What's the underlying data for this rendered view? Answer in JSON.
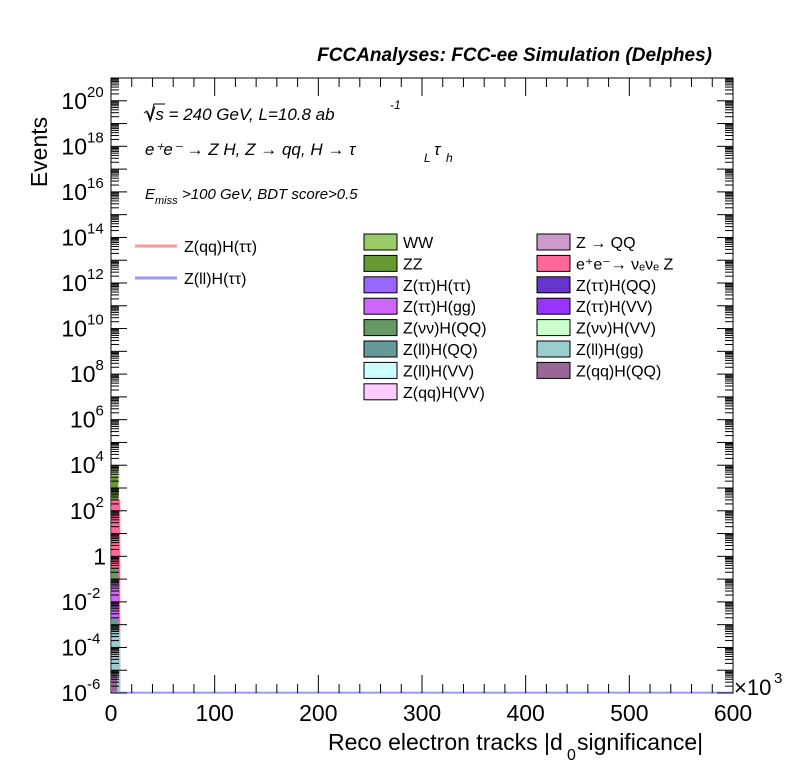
{
  "header": {
    "title": "FCCAnalyses: FCC-ee Simulation (Delphes)",
    "energy_line": "√s = 240 GeV, L=10.8 ab",
    "energy_exp": "-1",
    "process": "e⁺e⁻ → Z H, Z → qq, H → τ",
    "process_sub1": "L",
    "process_tail": "τ",
    "process_sub2": "h",
    "cuts_prefix": "E",
    "cuts_sub": "miss",
    "cuts_tail": ">100 GeV, BDT score>0.5"
  },
  "axes": {
    "xlabel": "Reco electron tracks |d",
    "xlabel_sub": "0",
    "xlabel_tail": " significance|",
    "ylabel": "Events",
    "x_multiplier": "×10",
    "x_multiplier_exp": "3"
  },
  "chart_data": {
    "type": "bar",
    "xlim": [
      0,
      600
    ],
    "x_unit_scale": 1000,
    "ylim": [
      1e-06,
      1e+21
    ],
    "ylog": true,
    "grid": false,
    "xticks": [
      "0",
      "100",
      "200",
      "300",
      "400",
      "500",
      "600"
    ],
    "yticks": [
      {
        "base": "10",
        "exp": "20",
        "value": 1e+20
      },
      {
        "base": "10",
        "exp": "18",
        "value": 1e+18
      },
      {
        "base": "10",
        "exp": "16",
        "value": 1e+16
      },
      {
        "base": "10",
        "exp": "14",
        "value": 100000000000000.0
      },
      {
        "base": "10",
        "exp": "12",
        "value": 1000000000000.0
      },
      {
        "base": "10",
        "exp": "10",
        "value": 10000000000.0
      },
      {
        "base": "10",
        "exp": "8",
        "value": 100000000.0
      },
      {
        "base": "10",
        "exp": "6",
        "value": 1000000.0
      },
      {
        "base": "10",
        "exp": "4",
        "value": 10000.0
      },
      {
        "base": "10",
        "exp": "2",
        "value": 100.0
      },
      {
        "base": "1",
        "exp": "",
        "value": 1
      },
      {
        "base": "10",
        "exp": "-2",
        "value": 0.01
      },
      {
        "base": "10",
        "exp": "-4",
        "value": 0.0001
      },
      {
        "base": "10",
        "exp": "-6",
        "value": 1e-06
      }
    ],
    "stack": [
      {
        "name": "WW",
        "color": "#99cc66",
        "x0": 0,
        "x1": 6,
        "top": 10000
      },
      {
        "name": "ZZ",
        "color": "#669933",
        "x0": 0,
        "x1": 6,
        "top": 3000
      },
      {
        "name": "e⁺e⁻→ νₑνₑ Z",
        "color": "#ff6699",
        "x0": 0,
        "x1": 8,
        "top": 300
      },
      {
        "name": "Z(νν)H(QQ)",
        "color": "#669966",
        "x0": 0,
        "x1": 6,
        "top": 0.3
      },
      {
        "name": "Z(ττ)H(gg)",
        "color": "#cc66ff",
        "x0": 0,
        "x1": 6,
        "top": 0.08
      },
      {
        "name": "Z(ll)H(QQ)",
        "color": "#669999",
        "x0": 0,
        "x1": 6,
        "top": 0.002
      },
      {
        "name": "Z(ll)H(gg)",
        "color": "#99cccc",
        "x0": 0,
        "x1": 8,
        "top": 0.0005
      },
      {
        "name": "Z(qq)H(QQ)",
        "color": "#996699",
        "x0": 0,
        "x1": 5,
        "top": 1e-05
      }
    ],
    "signal_lines": [
      {
        "name": "Z(qq)H(ττ)",
        "color": "#ff9999",
        "value": 1e-06
      },
      {
        "name": "Z(ll)H(ττ)",
        "color": "#9999ff",
        "value": 1e-06
      }
    ],
    "legend_signal": [
      {
        "name": "Z(qq)H(ττ)",
        "color": "#ff9999"
      },
      {
        "name": "Z(ll)H(ττ)",
        "color": "#9999ff"
      }
    ],
    "legend_bkg_col1": [
      {
        "name": "WW",
        "color": "#99cc66"
      },
      {
        "name": "ZZ",
        "color": "#669933"
      },
      {
        "name": "Z(ττ)H(ττ)",
        "color": "#9966ff"
      },
      {
        "name": "Z(ττ)H(gg)",
        "color": "#cc66ff"
      },
      {
        "name": "Z(νν)H(QQ)",
        "color": "#669966"
      },
      {
        "name": "Z(ll)H(QQ)",
        "color": "#669999"
      },
      {
        "name": "Z(ll)H(VV)",
        "color": "#ccffff"
      },
      {
        "name": "Z(qq)H(VV)",
        "color": "#ffccff"
      }
    ],
    "legend_bkg_col2": [
      {
        "name": "Z → QQ",
        "color": "#cc99cc"
      },
      {
        "name": "e⁺e⁻→ νₑνₑ Z",
        "color": "#ff6699"
      },
      {
        "name": "Z(ττ)H(QQ)",
        "color": "#6633cc"
      },
      {
        "name": "Z(ττ)H(VV)",
        "color": "#9933ff"
      },
      {
        "name": "Z(νν)H(VV)",
        "color": "#ccffcc"
      },
      {
        "name": "Z(ll)H(gg)",
        "color": "#99cccc"
      },
      {
        "name": "Z(qq)H(QQ)",
        "color": "#996699"
      }
    ]
  }
}
